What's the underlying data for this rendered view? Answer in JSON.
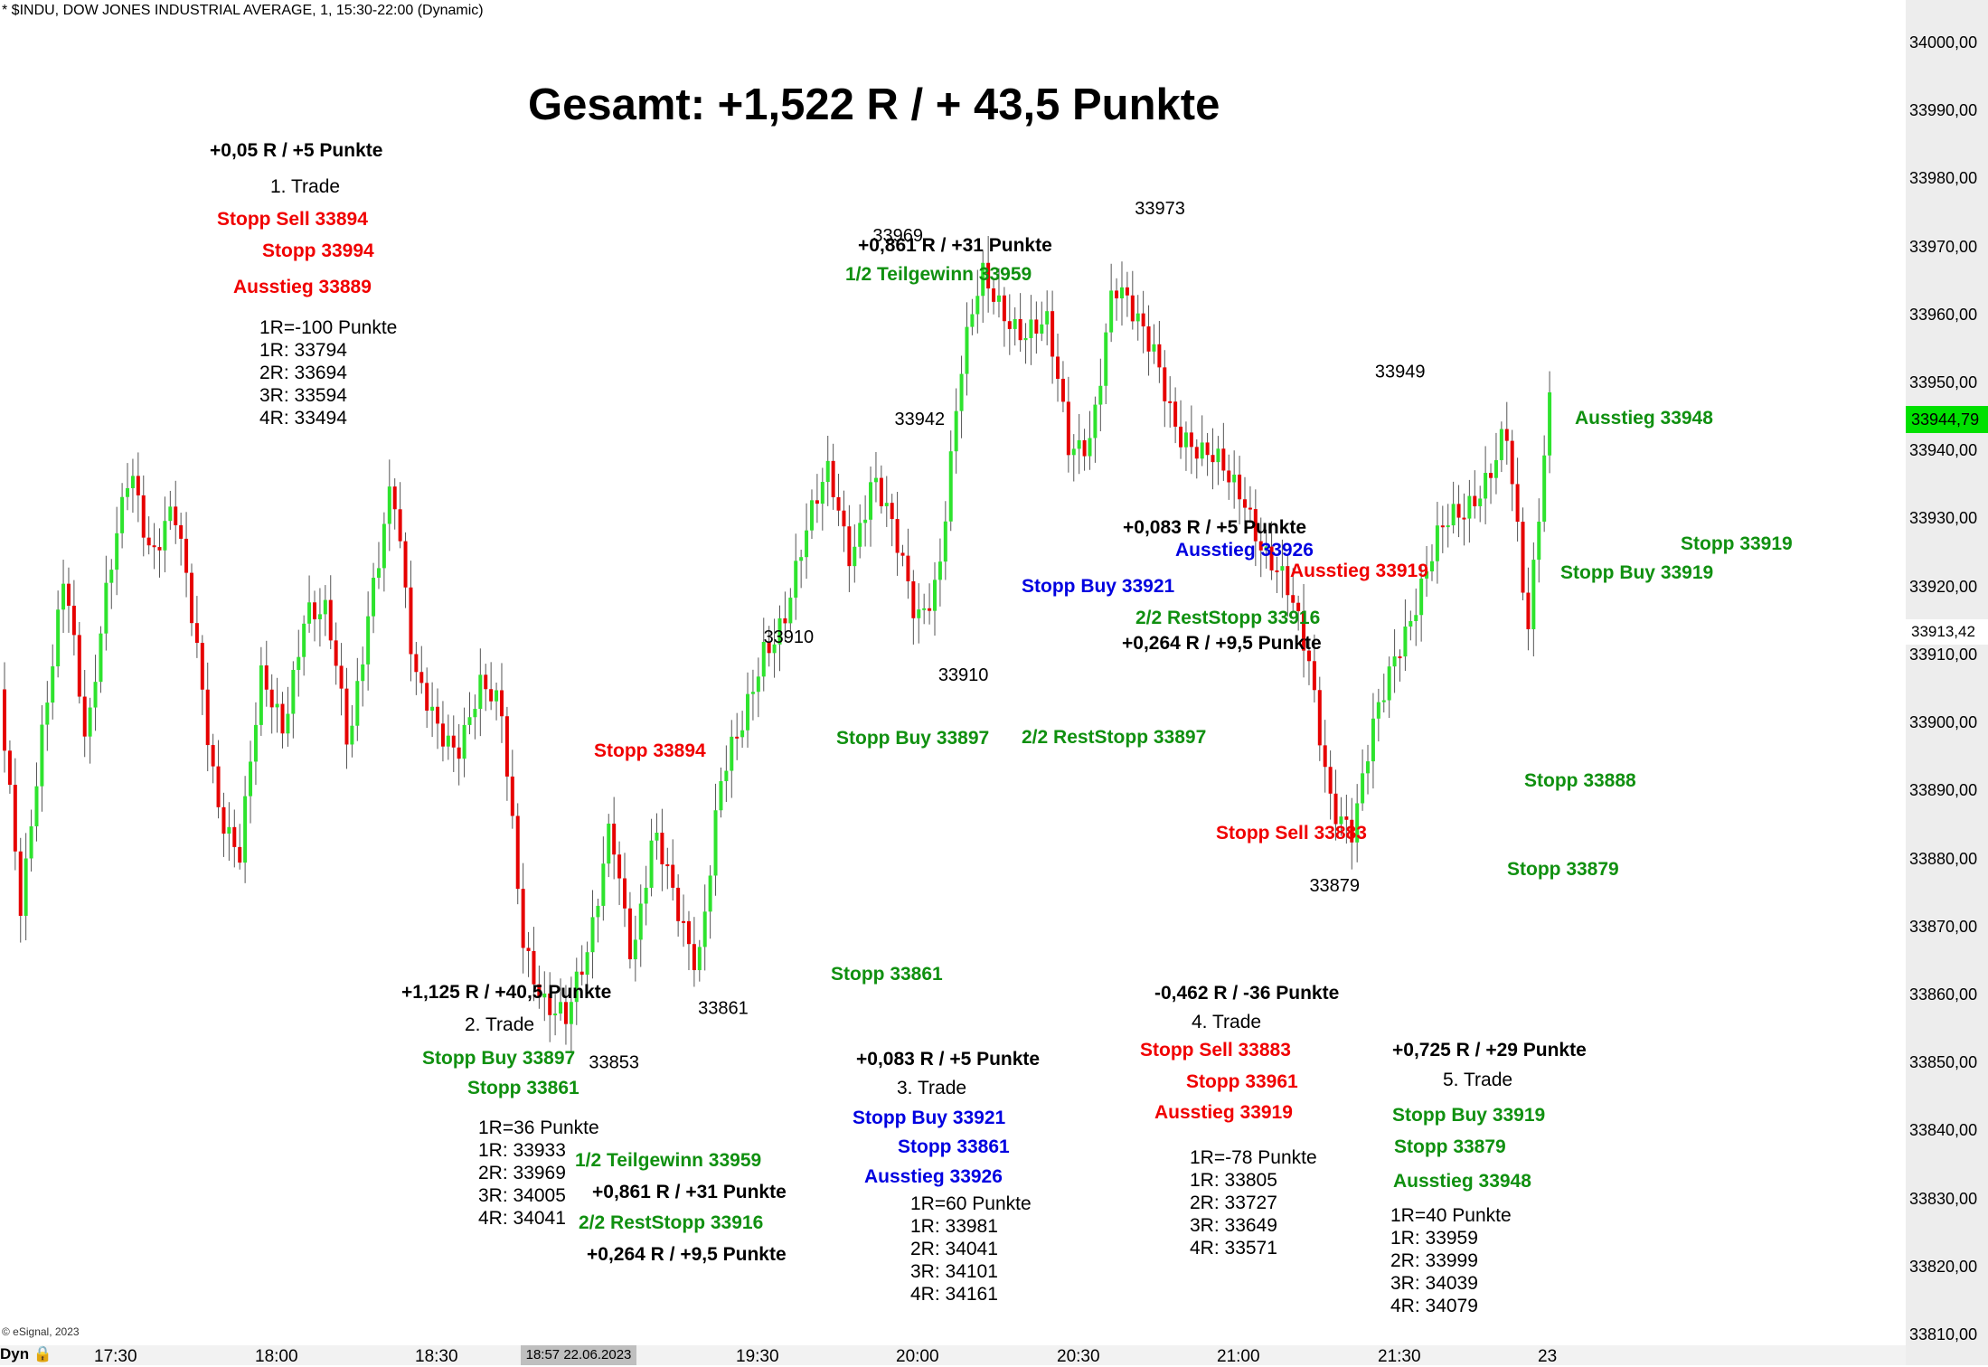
{
  "header": "* $INDU, DOW JONES INDUSTRIAL AVERAGE, 1, 15:30-22:00 (Dynamic)",
  "copyright": "© eSignal, 2023",
  "dyn_label": "Dyn",
  "title": "Gesamt: +1,522 R / + 43,5 Punkte",
  "colors": {
    "up": "#2ee32e",
    "down": "#e60000",
    "last_price_box": "#00e000"
  },
  "chart_data": {
    "type": "candlestick",
    "symbol": "$INDU",
    "timeframe": "1",
    "ylim": [
      33808,
      34006
    ],
    "y_ticks": [
      "34000,00",
      "33990,00",
      "33980,00",
      "33970,00",
      "33960,00",
      "33950,00",
      "33940,00",
      "33930,00",
      "33920,00",
      "33910,00",
      "33900,00",
      "33890,00",
      "33880,00",
      "33870,00",
      "33860,00",
      "33850,00",
      "33840,00",
      "33830,00",
      "33820,00",
      "33810,00"
    ],
    "x_ticks": [
      "17:30",
      "18:00",
      "18:30",
      "19:30",
      "20:00",
      "20:30",
      "21:00",
      "21:30",
      "23"
    ],
    "x_stamp": "18:57 22.06.2023",
    "last_price": "33944,79",
    "marker_price": "33913,42",
    "price_path": [
      [
        0,
        33905
      ],
      [
        1,
        33870
      ],
      [
        2,
        33900
      ],
      [
        3,
        33925
      ],
      [
        4,
        33895
      ],
      [
        5,
        33920
      ],
      [
        6,
        33940
      ],
      [
        7,
        33925
      ],
      [
        8,
        33930
      ],
      [
        9,
        33912
      ],
      [
        10,
        33890
      ],
      [
        11,
        33880
      ],
      [
        12,
        33905
      ],
      [
        13,
        33900
      ],
      [
        14,
        33918
      ],
      [
        15,
        33915
      ],
      [
        16,
        33895
      ],
      [
        17,
        33920
      ],
      [
        18,
        33937
      ],
      [
        19,
        33905
      ],
      [
        20,
        33900
      ],
      [
        21,
        33898
      ],
      [
        22,
        33905
      ],
      [
        23,
        33900
      ],
      [
        24,
        33869
      ],
      [
        25,
        33860
      ],
      [
        26,
        33855
      ],
      [
        27,
        33866
      ],
      [
        28,
        33888
      ],
      [
        29,
        33865
      ],
      [
        30,
        33882
      ],
      [
        31,
        33874
      ],
      [
        32,
        33866
      ],
      [
        33,
        33890
      ],
      [
        34,
        33898
      ],
      [
        35,
        33912
      ],
      [
        36,
        33917
      ],
      [
        37,
        33927
      ],
      [
        38,
        33937
      ],
      [
        39,
        33926
      ],
      [
        40,
        33936
      ],
      [
        41,
        33926
      ],
      [
        42,
        33916
      ],
      [
        43,
        33923
      ],
      [
        44,
        33950
      ],
      [
        45,
        33965
      ],
      [
        46,
        33962
      ],
      [
        47,
        33958
      ],
      [
        48,
        33957
      ],
      [
        49,
        33940
      ],
      [
        50,
        33944
      ],
      [
        51,
        33964
      ],
      [
        52,
        33958
      ],
      [
        53,
        33955
      ],
      [
        54,
        33944
      ],
      [
        55,
        33938
      ],
      [
        56,
        33937
      ],
      [
        57,
        33935
      ],
      [
        58,
        33925
      ],
      [
        59,
        33918
      ],
      [
        60,
        33909
      ],
      [
        61,
        33890
      ],
      [
        62,
        33883
      ],
      [
        63,
        33899
      ],
      [
        64,
        33912
      ],
      [
        65,
        33920
      ],
      [
        66,
        33927
      ],
      [
        67,
        33930
      ],
      [
        68,
        33937
      ],
      [
        69,
        33944
      ],
      [
        70,
        33911
      ],
      [
        71,
        33948
      ]
    ],
    "labels": [
      {
        "text": "33969",
        "price": 33969,
        "bar": 41
      },
      {
        "text": "33973",
        "price": 33973,
        "bar": 53
      },
      {
        "text": "33942",
        "price": 33942,
        "bar": 42
      },
      {
        "text": "33910",
        "price": 33910,
        "bar": 36
      },
      {
        "text": "33910",
        "price": 33910,
        "bar": 44
      },
      {
        "text": "33949",
        "price": 33949,
        "bar": 64
      },
      {
        "text": "33879",
        "price": 33879,
        "bar": 61
      },
      {
        "text": "33861",
        "price": 33861,
        "bar": 33
      },
      {
        "text": "33853",
        "price": 33853,
        "bar": 28
      }
    ]
  },
  "trade1": {
    "result": "+0,05 R / +5 Punkte",
    "name": "1. Trade",
    "entry": "Stopp Sell 33894",
    "stop": "Stopp 33994",
    "exit": "Ausstieg 33889",
    "r_lines": [
      "1R=-100 Punkte",
      "1R: 33794",
      "2R: 33694",
      "3R: 33594",
      "4R: 33494"
    ]
  },
  "trade2": {
    "result": "+1,125 R / +40,5 Punkte",
    "name": "2. Trade",
    "entry": "Stopp Buy 33897",
    "stop": "Stopp 33861",
    "r_lines": [
      "1R=36 Punkte",
      "1R: 33933",
      "2R: 33969",
      "3R: 34005",
      "4R: 34041"
    ],
    "partial": "1/2 Teilgewinn 33959",
    "partial_result": "+0,861 R / +31 Punkte",
    "rest": "2/2 RestStopp 33916",
    "rest_result": "+0,264 R / +9,5 Punkte"
  },
  "trade3": {
    "result": "+0,083 R / +5 Punkte",
    "name": "3. Trade",
    "entry": "Stopp Buy 33921",
    "stop": "Stopp 33861",
    "exit": "Ausstieg 33926",
    "r_lines": [
      "1R=60 Punkte",
      "1R: 33981",
      "2R: 34041",
      "3R: 34101",
      "4R: 34161"
    ]
  },
  "trade4": {
    "result": "-0,462 R / -36 Punkte",
    "name": "4. Trade",
    "entry": "Stopp Sell 33883",
    "stop": "Stopp 33961",
    "exit": "Ausstieg 33919",
    "r_lines": [
      "1R=-78 Punkte",
      "1R: 33805",
      "2R: 33727",
      "3R: 33649",
      "4R: 33571"
    ]
  },
  "trade5": {
    "result": "+0,725 R / +29 Punkte",
    "name": "5. Trade",
    "entry": "Stopp Buy 33919",
    "stop": "Stopp 33879",
    "exit": "Ausstieg 33948",
    "r_lines": [
      "1R=40 Punkte",
      "1R: 33959",
      "2R: 33999",
      "3R: 34039",
      "4R: 34079"
    ]
  },
  "annotations": {
    "stopp_33894": "Stopp 33894",
    "a_0861": "+0,861 R / +31 Punkte",
    "a_teil": "1/2 Teilgewinn 33959",
    "a_stoppbuy_33897": "Stopp Buy 33897",
    "a_rest_33897": "2/2 RestStopp 33897",
    "a_stopp_33861": "Stopp 33861",
    "a_0083": "+0,083 R / +5 Punkte",
    "a_aus_33926": "Ausstieg 33926",
    "a_stoppbuy_33921": "Stopp Buy 33921",
    "a_aus_33919": "Ausstieg 33919",
    "a_rest_33916": "2/2 RestStopp 33916",
    "a_0264": "+0,264 R / +9,5 Punkte",
    "a_stoppsell_33883": "Stopp Sell 33883",
    "a_aus_33948": "Ausstieg 33948",
    "a_stopp_33919": "Stopp 33919",
    "a_stoppbuy_33919": "Stopp Buy 33919",
    "a_stopp_33888": "Stopp 33888",
    "a_stopp_33879": "Stopp 33879"
  }
}
